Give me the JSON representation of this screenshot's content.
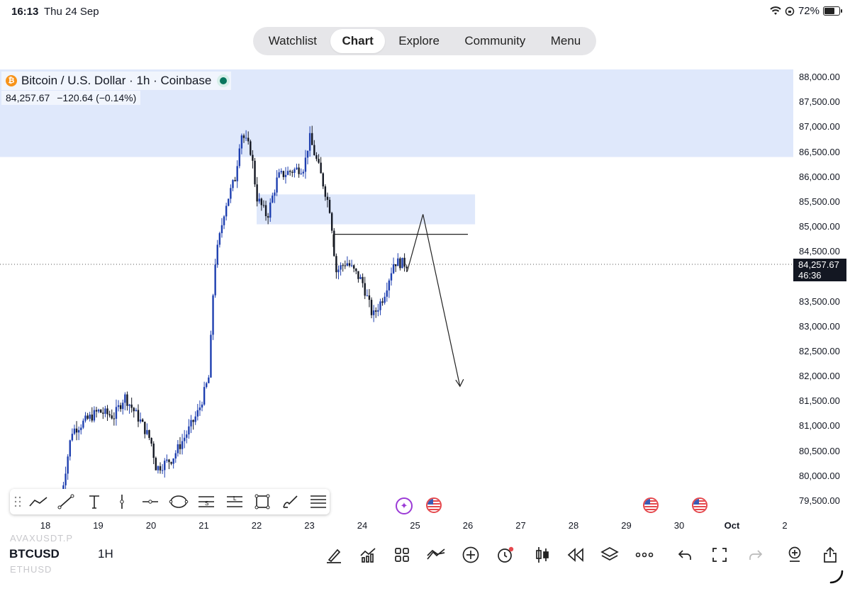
{
  "status_bar": {
    "time": "16:13",
    "date": "Thu 24 Sep",
    "battery": "72%",
    "battery_level": 0.72
  },
  "nav": {
    "tabs": [
      "Watchlist",
      "Chart",
      "Explore",
      "Community",
      "Menu"
    ],
    "active": "Chart"
  },
  "symbol": {
    "title": "Bitcoin / U.S. Dollar · 1h · Coinbase",
    "price": "84,257.67",
    "change": "−120.64 (−0.14%)"
  },
  "price_label": {
    "price": "84,257.67",
    "countdown": "46:36"
  },
  "yaxis_ticks": [
    "88,000.00",
    "87,500.00",
    "87,000.00",
    "86,500.00",
    "86,000.00",
    "85,500.00",
    "85,000.00",
    "84,500.00",
    "83,500.00",
    "83,000.00",
    "82,500.00",
    "82,000.00",
    "81,500.00",
    "81,000.00",
    "80,500.00",
    "80,000.00",
    "79,500.00"
  ],
  "xaxis_ticks": [
    "18",
    "19",
    "20",
    "21",
    "22",
    "23",
    "24",
    "25",
    "26",
    "27",
    "28",
    "29",
    "30",
    "Oct",
    "2"
  ],
  "drawing_tools": [
    "trend-angle-icon",
    "trend-line-icon",
    "text-icon",
    "vertical-line-icon",
    "horizontal-ray-icon",
    "ellipse-icon",
    "short-position-icon",
    "long-position-icon",
    "rectangle-icon",
    "brush-icon",
    "fib-retracement-icon"
  ],
  "bottom_bar": {
    "ghost_above": "AVAXUSDT.P",
    "ghost_below": "ETHUSD",
    "symbol": "BTCUSD",
    "interval": "1H",
    "tools": [
      "draw-icon",
      "indicators-icon",
      "layout-grid-icon",
      "compare-icon",
      "add-icon",
      "alert-icon",
      "candle-type-icon",
      "replay-icon",
      "layers-icon",
      "more-icon",
      "undo-icon",
      "fullscreen-icon",
      "redo-icon",
      "object-tree-icon",
      "share-icon"
    ]
  },
  "colors": {
    "zone": "#dfe8fb",
    "bull": "#1e3fb0",
    "bear": "#131722",
    "flag_red": "#e5484d",
    "live": "#08765e"
  },
  "chart_data": {
    "type": "candlestick",
    "title": "Bitcoin / U.S. Dollar · 1h · Coinbase",
    "x_range_days": [
      "18 Sep",
      "2 Oct"
    ],
    "ylim": [
      79300,
      88200
    ],
    "last_price": 84257.67,
    "zones": [
      {
        "from_y": 86400,
        "to_y": 88200,
        "x_from": "start",
        "x_to": "end"
      },
      {
        "from_y": 85050,
        "to_y": 85650,
        "x_from": "22 Sep",
        "x_to": "25.8 Sep"
      }
    ],
    "key_prices": {
      "session_high": 87400,
      "session_low": 80100,
      "recent_low": 82700
    },
    "projection_path": [
      [
        84100,
        "24.85"
      ],
      [
        85250,
        "25.15"
      ],
      [
        81800,
        "25.85"
      ]
    ],
    "horizontal_level": 84850
  }
}
